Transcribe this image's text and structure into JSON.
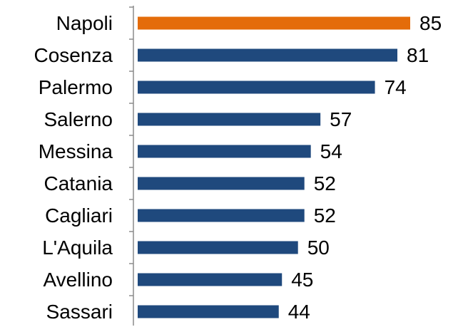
{
  "chart_data": {
    "type": "bar",
    "orientation": "horizontal",
    "categories": [
      "Napoli",
      "Cosenza",
      "Palermo",
      "Salerno",
      "Messina",
      "Catania",
      "Cagliari",
      "L'Aquila",
      "Avellino",
      "Sassari"
    ],
    "values": [
      85,
      81,
      74,
      57,
      54,
      52,
      52,
      50,
      45,
      44
    ],
    "colors": [
      "#e46c0a",
      "#1f497d",
      "#1f497d",
      "#1f497d",
      "#1f497d",
      "#1f497d",
      "#1f497d",
      "#1f497d",
      "#1f497d",
      "#1f497d"
    ],
    "value_labels_shown": true
  }
}
